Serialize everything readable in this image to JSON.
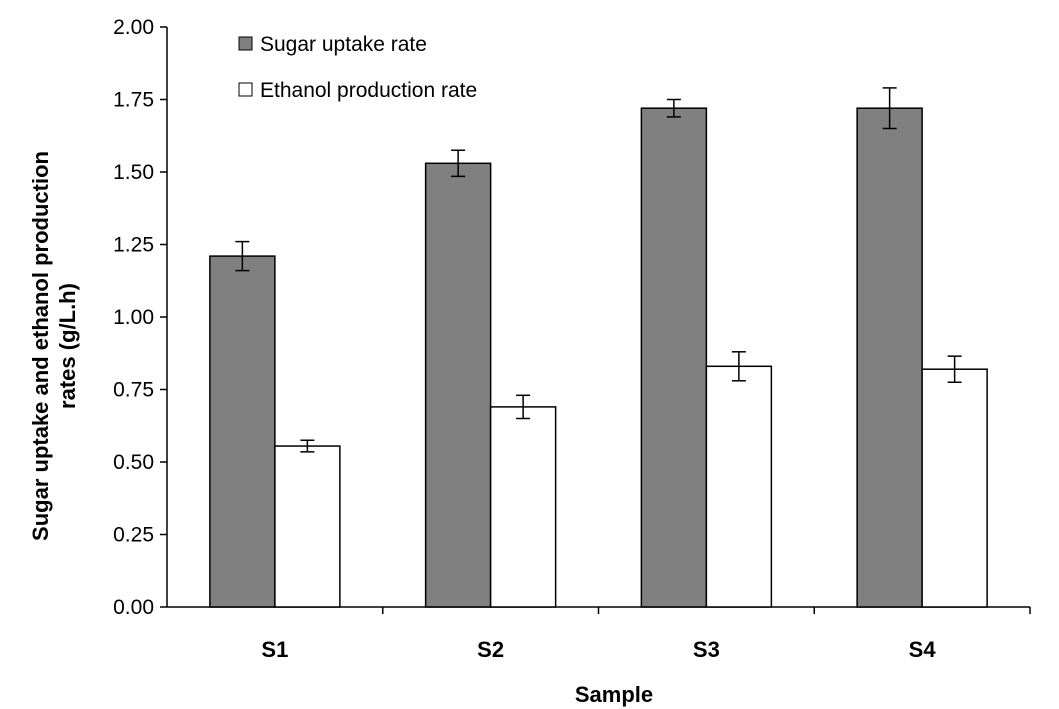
{
  "chart_data": {
    "type": "bar",
    "categories": [
      "S1",
      "S2",
      "S3",
      "S4"
    ],
    "series": [
      {
        "name": "Sugar uptake rate",
        "values": [
          1.21,
          1.53,
          1.72,
          1.72
        ],
        "errors": [
          0.05,
          0.045,
          0.03,
          0.07
        ],
        "color": "#808080"
      },
      {
        "name": "Ethanol production rate",
        "values": [
          0.555,
          0.69,
          0.83,
          0.82
        ],
        "errors": [
          0.02,
          0.04,
          0.05,
          0.045
        ],
        "color": "#ffffff"
      }
    ],
    "xlabel": "Sample",
    "ylabel_lines": [
      "Sugar uptake and ethanol production",
      "rates (g/L.h)"
    ],
    "ylim": [
      0,
      2.0
    ],
    "yticks": [
      "0.00",
      "0.25",
      "0.50",
      "0.75",
      "1.00",
      "1.25",
      "1.50",
      "1.75",
      "2.00"
    ],
    "grid": false,
    "legend_position": "top-left"
  }
}
